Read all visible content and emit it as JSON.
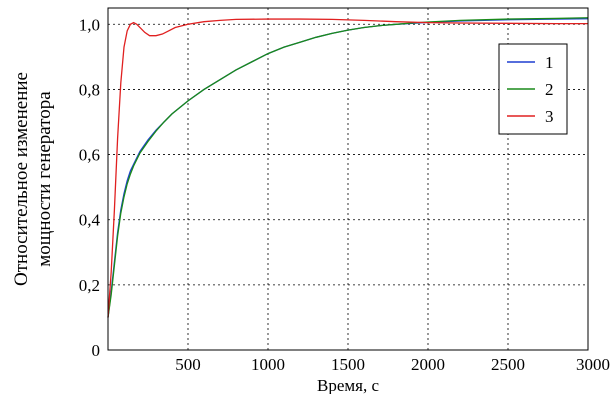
{
  "chart_data": {
    "type": "line",
    "title": "",
    "xlabel": "Время, с",
    "ylabel_lines": [
      "Относительное изменение",
      "мощности генератора"
    ],
    "xlim": [
      0,
      3000
    ],
    "ylim": [
      0,
      1.05
    ],
    "x_ticks": [
      {
        "value": 500,
        "label": "500"
      },
      {
        "value": 1000,
        "label": "1000"
      },
      {
        "value": 1500,
        "label": "1500"
      },
      {
        "value": 2000,
        "label": "2000"
      },
      {
        "value": 2500,
        "label": "2500"
      },
      {
        "value": 3000,
        "label": "3000"
      }
    ],
    "y_ticks": [
      {
        "value": 0,
        "label": "0"
      },
      {
        "value": 0.2,
        "label": "0,2"
      },
      {
        "value": 0.4,
        "label": "0,4"
      },
      {
        "value": 0.6,
        "label": "0,6"
      },
      {
        "value": 0.8,
        "label": "0,8"
      },
      {
        "value": 1.0,
        "label": "1,0"
      }
    ],
    "grid": true,
    "legend_position": "top-right",
    "series": [
      {
        "name": "1",
        "color": "#1f3fd0",
        "points": [
          [
            0,
            0.1
          ],
          [
            20,
            0.18
          ],
          [
            40,
            0.27
          ],
          [
            60,
            0.36
          ],
          [
            80,
            0.43
          ],
          [
            100,
            0.48
          ],
          [
            120,
            0.52
          ],
          [
            140,
            0.55
          ],
          [
            160,
            0.57
          ],
          [
            180,
            0.59
          ],
          [
            200,
            0.61
          ],
          [
            250,
            0.645
          ],
          [
            300,
            0.675
          ],
          [
            350,
            0.7
          ],
          [
            400,
            0.725
          ],
          [
            500,
            0.765
          ],
          [
            600,
            0.8
          ],
          [
            700,
            0.83
          ],
          [
            800,
            0.86
          ],
          [
            900,
            0.885
          ],
          [
            1000,
            0.91
          ],
          [
            1100,
            0.93
          ],
          [
            1200,
            0.945
          ],
          [
            1300,
            0.96
          ],
          [
            1400,
            0.972
          ],
          [
            1500,
            0.982
          ],
          [
            1600,
            0.99
          ],
          [
            1700,
            0.996
          ],
          [
            1800,
            1.0
          ],
          [
            1900,
            1.003
          ],
          [
            2000,
            1.006
          ],
          [
            2200,
            1.01
          ],
          [
            2500,
            1.014
          ],
          [
            2800,
            1.016
          ],
          [
            3000,
            1.017
          ]
        ]
      },
      {
        "name": "2",
        "color": "#1a8a1a",
        "points": [
          [
            0,
            0.1
          ],
          [
            20,
            0.17
          ],
          [
            40,
            0.26
          ],
          [
            60,
            0.35
          ],
          [
            80,
            0.42
          ],
          [
            100,
            0.47
          ],
          [
            120,
            0.51
          ],
          [
            140,
            0.54
          ],
          [
            160,
            0.565
          ],
          [
            180,
            0.585
          ],
          [
            200,
            0.605
          ],
          [
            250,
            0.64
          ],
          [
            300,
            0.672
          ],
          [
            350,
            0.7
          ],
          [
            400,
            0.725
          ],
          [
            500,
            0.765
          ],
          [
            600,
            0.8
          ],
          [
            700,
            0.83
          ],
          [
            800,
            0.86
          ],
          [
            900,
            0.885
          ],
          [
            1000,
            0.91
          ],
          [
            1100,
            0.93
          ],
          [
            1200,
            0.945
          ],
          [
            1300,
            0.96
          ],
          [
            1400,
            0.972
          ],
          [
            1500,
            0.982
          ],
          [
            1600,
            0.99
          ],
          [
            1700,
            0.996
          ],
          [
            1800,
            1.0
          ],
          [
            1900,
            1.004
          ],
          [
            2000,
            1.007
          ],
          [
            2200,
            1.012
          ],
          [
            2500,
            1.016
          ],
          [
            2800,
            1.018
          ],
          [
            3000,
            1.02
          ]
        ]
      },
      {
        "name": "3",
        "color": "#e02020",
        "points": [
          [
            0,
            0.1
          ],
          [
            20,
            0.24
          ],
          [
            40,
            0.43
          ],
          [
            60,
            0.65
          ],
          [
            80,
            0.82
          ],
          [
            100,
            0.93
          ],
          [
            120,
            0.98
          ],
          [
            140,
            1.0
          ],
          [
            160,
            1.005
          ],
          [
            180,
            1.0
          ],
          [
            200,
            0.99
          ],
          [
            230,
            0.975
          ],
          [
            260,
            0.965
          ],
          [
            300,
            0.965
          ],
          [
            340,
            0.97
          ],
          [
            380,
            0.98
          ],
          [
            420,
            0.99
          ],
          [
            500,
            1.0
          ],
          [
            600,
            1.008
          ],
          [
            700,
            1.012
          ],
          [
            800,
            1.015
          ],
          [
            1000,
            1.016
          ],
          [
            1200,
            1.016
          ],
          [
            1400,
            1.015
          ],
          [
            1600,
            1.012
          ],
          [
            1800,
            1.008
          ],
          [
            2000,
            1.005
          ],
          [
            2200,
            1.004
          ],
          [
            2500,
            1.003
          ],
          [
            2800,
            1.002
          ],
          [
            3000,
            1.002
          ]
        ]
      }
    ]
  }
}
